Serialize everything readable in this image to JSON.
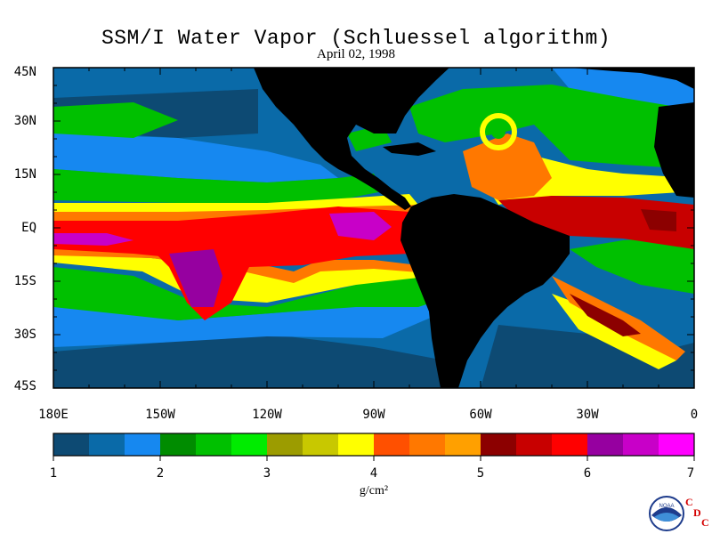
{
  "title": "SSM/I Water Vapor (Schluessel algorithm)",
  "date": "April 02, 1998",
  "lat_labels": [
    "45N",
    "30N",
    "15N",
    "EQ",
    "15S",
    "30S",
    "45S"
  ],
  "lon_labels": [
    "180E",
    "150W",
    "120W",
    "90W",
    "60W",
    "30W",
    "0"
  ],
  "colorbar": {
    "ticks": [
      "1",
      "2",
      "3",
      "4",
      "5",
      "6",
      "7"
    ],
    "units": "g/cm²",
    "colors": [
      "#0d4a73",
      "#0a6aa8",
      "#1688f0",
      "#008c00",
      "#00c000",
      "#00ec00",
      "#9c9c00",
      "#c8c800",
      "#ffff00",
      "#ff5000",
      "#ff7800",
      "#ffa000",
      "#8c0000",
      "#c80000",
      "#ff0000",
      "#9600a0",
      "#c800c8",
      "#ff00ff"
    ]
  },
  "colors": {
    "land": "#000000",
    "background": "#ffffff"
  },
  "logo": {
    "agency": "NOAA",
    "cdc_letters": [
      "C",
      "D",
      "C"
    ]
  }
}
